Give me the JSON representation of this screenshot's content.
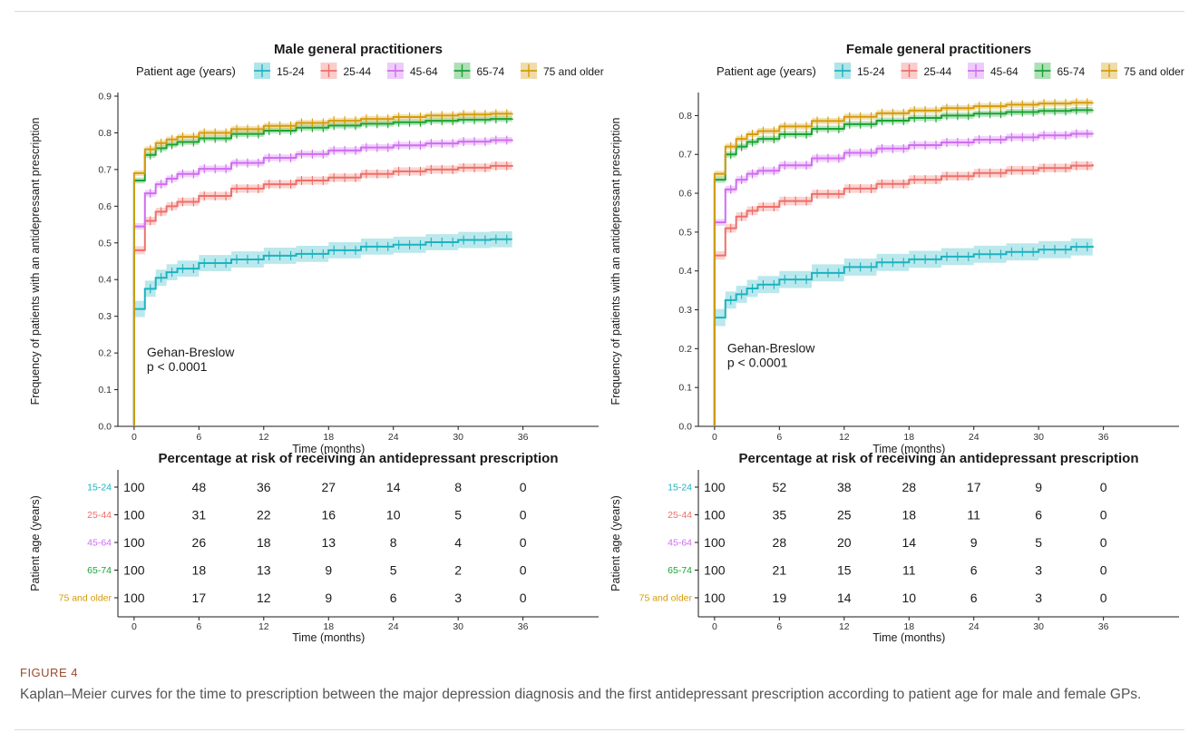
{
  "figure": {
    "label": "FIGURE 4",
    "caption": "Kaplan–Meier curves for the time to prescription between the major depression diagnosis and the first antidepressant prescription according to patient age for male and female GPs."
  },
  "colors": {
    "15-24": "#1bb3bf",
    "25-44": "#ee6f69",
    "45-64": "#cf6df2",
    "65-74": "#1aa331",
    "75 and older": "#d59c0b"
  },
  "chart_data": [
    {
      "type": "line",
      "title": "Male general practitioners",
      "legend_title": "Patient age (years)",
      "legend_position": "top",
      "xlabel": "Time (months)",
      "ylabel": "Frequency of patients with an antidepressant prescription",
      "xlim": [
        -1.5,
        43
      ],
      "ylim": [
        0,
        0.9
      ],
      "xticks": [
        0,
        6,
        12,
        18,
        24,
        30,
        36
      ],
      "yticks": [
        0.0,
        0.1,
        0.2,
        0.3,
        0.4,
        0.5,
        0.6,
        0.7,
        0.8,
        0.9
      ],
      "annotation": [
        "Gehan-Breslow",
        "p < 0.0001"
      ],
      "series": [
        {
          "name": "15-24",
          "x": [
            0,
            1,
            2,
            3,
            4,
            6,
            9,
            12,
            15,
            18,
            21,
            24,
            27,
            30,
            33,
            35
          ],
          "y": [
            0.32,
            0.375,
            0.405,
            0.42,
            0.43,
            0.445,
            0.455,
            0.465,
            0.47,
            0.48,
            0.49,
            0.495,
            0.502,
            0.508,
            0.51,
            0.51
          ]
        },
        {
          "name": "25-44",
          "x": [
            0,
            1,
            2,
            3,
            4,
            6,
            9,
            12,
            15,
            18,
            21,
            24,
            27,
            30,
            33,
            35
          ],
          "y": [
            0.48,
            0.56,
            0.585,
            0.6,
            0.612,
            0.628,
            0.648,
            0.66,
            0.67,
            0.678,
            0.688,
            0.695,
            0.7,
            0.705,
            0.71,
            0.712
          ]
        },
        {
          "name": "45-64",
          "x": [
            0,
            1,
            2,
            3,
            4,
            6,
            9,
            12,
            15,
            18,
            21,
            24,
            27,
            30,
            33,
            35
          ],
          "y": [
            0.545,
            0.635,
            0.66,
            0.675,
            0.688,
            0.702,
            0.718,
            0.732,
            0.742,
            0.752,
            0.76,
            0.766,
            0.771,
            0.776,
            0.78,
            0.782
          ]
        },
        {
          "name": "65-74",
          "x": [
            0,
            1,
            2,
            3,
            4,
            6,
            9,
            12,
            15,
            18,
            21,
            24,
            27,
            30,
            33,
            35
          ],
          "y": [
            0.67,
            0.74,
            0.758,
            0.768,
            0.775,
            0.785,
            0.797,
            0.806,
            0.814,
            0.82,
            0.825,
            0.829,
            0.833,
            0.836,
            0.838,
            0.839
          ]
        },
        {
          "name": "75 and older",
          "x": [
            0,
            1,
            2,
            3,
            4,
            6,
            9,
            12,
            15,
            18,
            21,
            24,
            27,
            30,
            33,
            35
          ],
          "y": [
            0.69,
            0.755,
            0.772,
            0.782,
            0.789,
            0.8,
            0.81,
            0.819,
            0.827,
            0.833,
            0.838,
            0.843,
            0.847,
            0.85,
            0.852,
            0.853
          ]
        }
      ],
      "risk_table": {
        "title": "Percentage at risk of receiving an antidepressant prescription",
        "ylabel": "Patient age (years)",
        "xlabel": "Time (months)",
        "groups": [
          "15-24",
          "25-44",
          "45-64",
          "65-74",
          "75 and older"
        ],
        "times": [
          0,
          6,
          12,
          18,
          24,
          30,
          36
        ],
        "values": [
          [
            "100",
            "48",
            "36",
            "27",
            "14",
            "8",
            "0"
          ],
          [
            "100",
            "31",
            "22",
            "16",
            "10",
            "5",
            "0"
          ],
          [
            "100",
            "26",
            "18",
            "13",
            "8",
            "4",
            "0"
          ],
          [
            "100",
            "18",
            "13",
            "9",
            "5",
            "2",
            "0"
          ],
          [
            "100",
            "17",
            "12",
            "9",
            "6",
            "3",
            "0"
          ]
        ]
      }
    },
    {
      "type": "line",
      "title": "Female general practitioners",
      "legend_title": "Patient age (years)",
      "legend_position": "top",
      "xlabel": "Time (months)",
      "ylabel": "Frequency of patients with an antidepressant prescription",
      "xlim": [
        -1.5,
        43
      ],
      "ylim": [
        0,
        0.85
      ],
      "xticks": [
        0,
        6,
        12,
        18,
        24,
        30,
        36
      ],
      "yticks": [
        0.0,
        0.1,
        0.2,
        0.3,
        0.4,
        0.5,
        0.6,
        0.7,
        0.8
      ],
      "annotation": [
        "Gehan-Breslow",
        "p < 0.0001"
      ],
      "series": [
        {
          "name": "15-24",
          "x": [
            0,
            1,
            2,
            3,
            4,
            6,
            9,
            12,
            15,
            18,
            21,
            24,
            27,
            30,
            33,
            35
          ],
          "y": [
            0.28,
            0.325,
            0.34,
            0.355,
            0.365,
            0.378,
            0.395,
            0.41,
            0.422,
            0.43,
            0.437,
            0.443,
            0.449,
            0.455,
            0.462,
            0.465
          ]
        },
        {
          "name": "25-44",
          "x": [
            0,
            1,
            2,
            3,
            4,
            6,
            9,
            12,
            15,
            18,
            21,
            24,
            27,
            30,
            33,
            35
          ],
          "y": [
            0.44,
            0.51,
            0.54,
            0.555,
            0.565,
            0.58,
            0.598,
            0.612,
            0.624,
            0.635,
            0.644,
            0.652,
            0.659,
            0.665,
            0.671,
            0.675
          ]
        },
        {
          "name": "45-64",
          "x": [
            0,
            1,
            2,
            3,
            4,
            6,
            9,
            12,
            15,
            18,
            21,
            24,
            27,
            30,
            33,
            35
          ],
          "y": [
            0.525,
            0.61,
            0.635,
            0.65,
            0.658,
            0.672,
            0.69,
            0.704,
            0.715,
            0.724,
            0.731,
            0.738,
            0.744,
            0.749,
            0.753,
            0.755
          ]
        },
        {
          "name": "65-74",
          "x": [
            0,
            1,
            2,
            3,
            4,
            6,
            9,
            12,
            15,
            18,
            21,
            24,
            27,
            30,
            33,
            35
          ],
          "y": [
            0.635,
            0.7,
            0.72,
            0.732,
            0.74,
            0.752,
            0.766,
            0.778,
            0.787,
            0.794,
            0.8,
            0.805,
            0.809,
            0.812,
            0.814,
            0.815
          ]
        },
        {
          "name": "75 and older",
          "x": [
            0,
            1,
            2,
            3,
            4,
            6,
            9,
            12,
            15,
            18,
            21,
            24,
            27,
            30,
            33,
            35
          ],
          "y": [
            0.65,
            0.72,
            0.74,
            0.752,
            0.76,
            0.772,
            0.786,
            0.797,
            0.806,
            0.813,
            0.819,
            0.824,
            0.828,
            0.831,
            0.833,
            0.834
          ]
        }
      ],
      "risk_table": {
        "title": "Percentage at risk of receiving an antidepressant prescription",
        "ylabel": "Patient age (years)",
        "xlabel": "Time (months)",
        "groups": [
          "15-24",
          "25-44",
          "45-64",
          "65-74",
          "75 and older"
        ],
        "times": [
          0,
          6,
          12,
          18,
          24,
          30,
          36
        ],
        "values": [
          [
            "100",
            "52",
            "38",
            "28",
            "17",
            "9",
            "0"
          ],
          [
            "100",
            "35",
            "25",
            "18",
            "11",
            "6",
            "0"
          ],
          [
            "100",
            "28",
            "20",
            "14",
            "9",
            "5",
            "0"
          ],
          [
            "100",
            "21",
            "15",
            "11",
            "6",
            "3",
            "0"
          ],
          [
            "100",
            "19",
            "14",
            "10",
            "6",
            "3",
            "0"
          ]
        ]
      }
    }
  ]
}
